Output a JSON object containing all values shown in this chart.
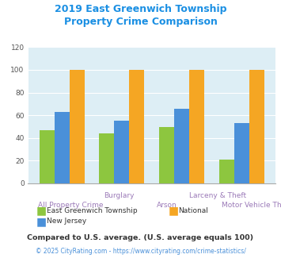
{
  "title": "2019 East Greenwich Township\nProperty Crime Comparison",
  "title_color": "#1a8fe3",
  "groups": [
    "All Property Crime",
    "Burglary",
    "Larceny & Theft",
    "Motor Vehicle Theft"
  ],
  "east_greenwich": [
    47,
    44,
    50,
    21
  ],
  "new_jersey": [
    63,
    55,
    66,
    53
  ],
  "national": [
    100,
    100,
    100,
    100
  ],
  "colors": {
    "east_greenwich": "#8dc63f",
    "new_jersey": "#4a90d9",
    "national": "#f5a623"
  },
  "ylim": [
    0,
    120
  ],
  "yticks": [
    0,
    20,
    40,
    60,
    80,
    100,
    120
  ],
  "plot_bg": "#ddeef5",
  "x_label_color": "#9b7ab8",
  "legend_labels": [
    "East Greenwich Township",
    "National",
    "New Jersey"
  ],
  "legend_colors": [
    "#8dc63f",
    "#f5a623",
    "#4a90d9"
  ],
  "footnote1": "Compared to U.S. average. (U.S. average equals 100)",
  "footnote2": "© 2025 CityRating.com - https://www.cityrating.com/crime-statistics/",
  "footnote1_color": "#333333",
  "footnote2_color": "#4a90d9",
  "bar_width": 0.25,
  "upper_labels": [
    [
      "Burglary",
      0.95
    ],
    [
      "Larceny & Theft",
      2.6
    ]
  ],
  "lower_labels": [
    [
      "All Property Crime",
      0.15
    ],
    [
      "Arson",
      1.75
    ],
    [
      "Motor Vehicle Theft",
      3.25
    ]
  ]
}
